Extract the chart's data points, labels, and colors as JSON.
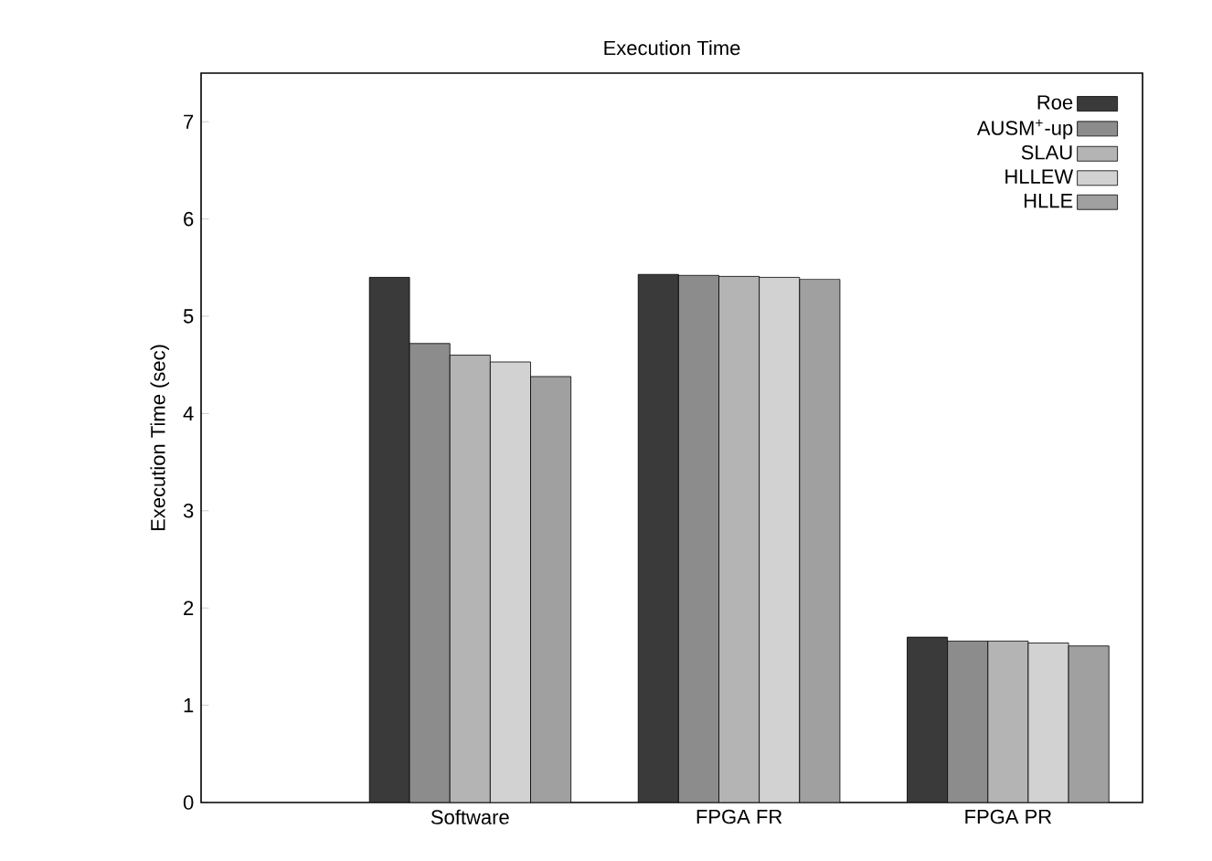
{
  "chart_data": {
    "type": "bar",
    "title": "Execution Time",
    "ylabel": "Execution Time (sec)",
    "categories": [
      "Software",
      "FPGA FR",
      "FPGA PR"
    ],
    "series": [
      {
        "name": "Roe",
        "color": "#3a3a3a",
        "values": [
          5.4,
          5.43,
          1.7
        ]
      },
      {
        "name": "AUSM$^{+}$-up",
        "color": "#8c8c8c",
        "values": [
          4.72,
          5.42,
          1.66
        ]
      },
      {
        "name": "SLAU",
        "color": "#b4b4b4",
        "values": [
          4.6,
          5.41,
          1.66
        ]
      },
      {
        "name": "HLLEW",
        "color": "#d2d2d2",
        "values": [
          4.53,
          5.4,
          1.64
        ]
      },
      {
        "name": "HLLE",
        "color": "#a0a0a0",
        "values": [
          4.38,
          5.38,
          1.61
        ]
      }
    ],
    "ylim": [
      0,
      7.5
    ],
    "yticks": [
      0,
      1,
      2,
      3,
      4,
      5,
      6,
      7
    ],
    "legend": "top right"
  }
}
